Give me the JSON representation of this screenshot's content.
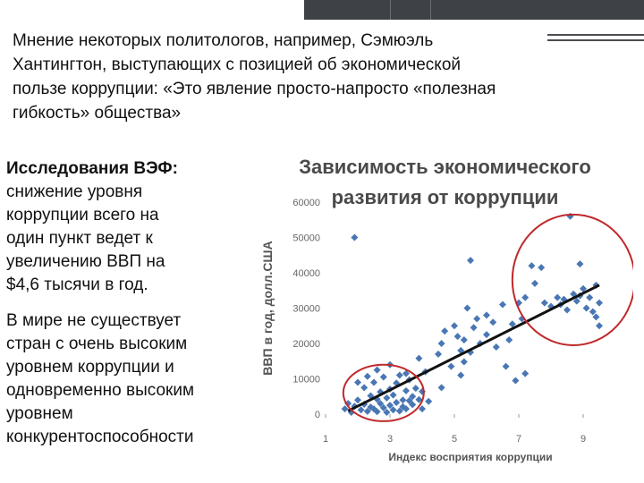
{
  "quote": {
    "lines": [
      "Мнение некоторых политологов, например, Сэмюэль",
      "Хантингтон, выступающих с позицией об экономической",
      "пользе коррупции: «Это явление просто-напросто «полезная",
      "гибкость» общества»"
    ]
  },
  "side": {
    "heading": "Исследования ВЭФ:",
    "para1_lines": [
      "снижение уровня",
      "коррупции всего на",
      "один пункт ведет к",
      "увеличению ВВП на",
      "$4,6 тысячи в год."
    ],
    "para2_lines": [
      "В мире не существует",
      "стран с очень высоким",
      "уровнем коррупции и",
      "одновременно высоким",
      "уровнем",
      "конкурентоспособности"
    ]
  },
  "chart_title_lines": [
    "Зависимость экономического",
    "развития от коррупции"
  ],
  "colors": {
    "marker": "#4a77b4",
    "trend": "#111111",
    "ellipse": "#c0282a",
    "title": "#4a4a4a",
    "topbar": "#3e4146"
  },
  "chart_data": {
    "type": "scatter",
    "title": "Зависимость экономического развития от коррупции",
    "xlabel": "Индекс восприятия коррупции",
    "ylabel": "ВВП в год, долл.США",
    "xlim": [
      1,
      10
    ],
    "ylim": [
      0,
      60000
    ],
    "x_ticks": [
      "1",
      "3",
      "5",
      "7",
      "9"
    ],
    "y_ticks": [
      "0",
      "10000",
      "20000",
      "30000",
      "40000",
      "50000",
      "60000"
    ],
    "trendline": {
      "x": [
        1.7,
        9.5
      ],
      "y": [
        900,
        36500
      ]
    },
    "highlight_ellipses": [
      {
        "center": [
          2.8,
          6000
        ],
        "radius": [
          1.25,
          8000
        ]
      },
      {
        "center": [
          8.7,
          38000
        ],
        "radius": [
          1.9,
          18500
        ]
      }
    ],
    "points": [
      [
        1.9,
        50000
      ],
      [
        1.6,
        1500
      ],
      [
        1.7,
        3000
      ],
      [
        1.8,
        500
      ],
      [
        1.9,
        2200
      ],
      [
        2.0,
        4000
      ],
      [
        2.1,
        1200
      ],
      [
        2.2,
        7500
      ],
      [
        2.2,
        2800
      ],
      [
        2.3,
        800
      ],
      [
        2.4,
        5200
      ],
      [
        2.4,
        2000
      ],
      [
        2.5,
        1500
      ],
      [
        2.5,
        9000
      ],
      [
        2.6,
        4200
      ],
      [
        2.6,
        700
      ],
      [
        2.7,
        3000
      ],
      [
        2.7,
        6300
      ],
      [
        2.8,
        1800
      ],
      [
        2.8,
        10500
      ],
      [
        2.9,
        500
      ],
      [
        2.9,
        4600
      ],
      [
        3.0,
        2500
      ],
      [
        3.0,
        7100
      ],
      [
        3.1,
        1200
      ],
      [
        3.1,
        5400
      ],
      [
        3.2,
        3300
      ],
      [
        3.2,
        8800
      ],
      [
        3.3,
        900
      ],
      [
        3.3,
        11000
      ],
      [
        3.4,
        4000
      ],
      [
        3.4,
        2100
      ],
      [
        3.5,
        6600
      ],
      [
        3.5,
        1500
      ],
      [
        3.6,
        3800
      ],
      [
        3.6,
        9700
      ],
      [
        3.7,
        5000
      ],
      [
        3.7,
        2700
      ],
      [
        3.8,
        7300
      ],
      [
        3.9,
        4100
      ],
      [
        3.9,
        15800
      ],
      [
        4.0,
        1500
      ],
      [
        4.0,
        6400
      ],
      [
        4.1,
        12000
      ],
      [
        2.0,
        9000
      ],
      [
        2.3,
        10700
      ],
      [
        3.0,
        14000
      ],
      [
        2.6,
        12500
      ],
      [
        3.5,
        11500
      ],
      [
        4.2,
        3600
      ],
      [
        4.5,
        17000
      ],
      [
        4.6,
        7500
      ],
      [
        4.6,
        20000
      ],
      [
        4.7,
        23500
      ],
      [
        4.9,
        13500
      ],
      [
        5.0,
        25000
      ],
      [
        5.1,
        22000
      ],
      [
        5.2,
        18000
      ],
      [
        5.2,
        11000
      ],
      [
        5.3,
        14800
      ],
      [
        5.3,
        21000
      ],
      [
        5.4,
        30000
      ],
      [
        5.5,
        43500
      ],
      [
        5.5,
        17500
      ],
      [
        5.6,
        24500
      ],
      [
        5.7,
        27000
      ],
      [
        5.8,
        20000
      ],
      [
        6.0,
        28000
      ],
      [
        6.0,
        22500
      ],
      [
        6.2,
        26000
      ],
      [
        6.3,
        19000
      ],
      [
        6.5,
        31000
      ],
      [
        6.6,
        13500
      ],
      [
        6.7,
        21000
      ],
      [
        6.8,
        25500
      ],
      [
        7.0,
        31500
      ],
      [
        7.2,
        33000
      ],
      [
        7.1,
        27000
      ],
      [
        6.9,
        9500
      ],
      [
        7.2,
        11500
      ],
      [
        7.4,
        42000
      ],
      [
        7.5,
        37000
      ],
      [
        7.7,
        41500
      ],
      [
        7.8,
        31500
      ],
      [
        8.0,
        30500
      ],
      [
        8.2,
        33000
      ],
      [
        8.4,
        32500
      ],
      [
        8.5,
        29500
      ],
      [
        8.6,
        56000
      ],
      [
        8.7,
        34000
      ],
      [
        8.8,
        32000
      ],
      [
        8.9,
        42500
      ],
      [
        8.9,
        33500
      ],
      [
        9.0,
        35500
      ],
      [
        9.1,
        30000
      ],
      [
        9.2,
        33000
      ],
      [
        9.3,
        29000
      ],
      [
        9.4,
        36500
      ],
      [
        9.4,
        27500
      ],
      [
        9.5,
        31500
      ],
      [
        9.5,
        25000
      ],
      [
        8.3,
        31000
      ]
    ]
  }
}
